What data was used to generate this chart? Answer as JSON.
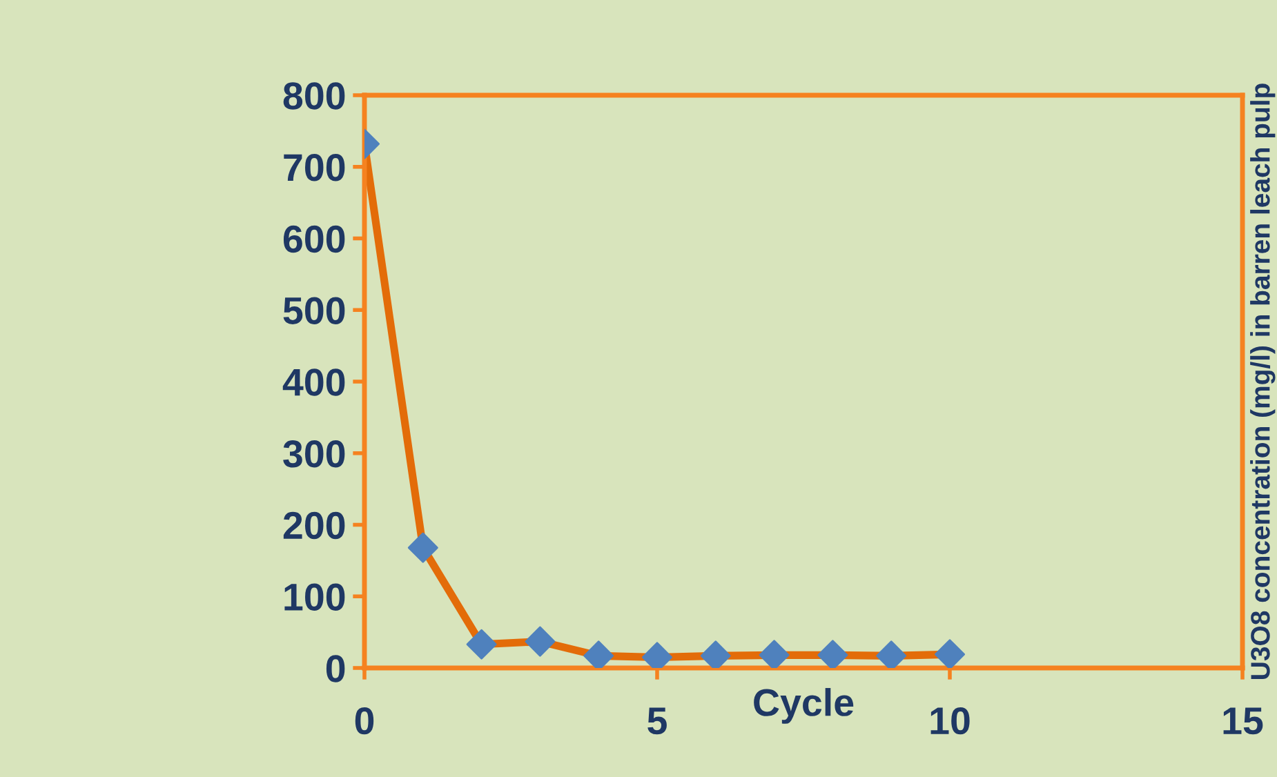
{
  "chart_data": {
    "type": "line",
    "xlabel": "Cycle",
    "ylabel": "U3O8 concentration (mg/l) in barren leach pulp",
    "x": [
      0,
      1,
      2,
      3,
      4,
      5,
      6,
      7,
      8,
      9,
      10
    ],
    "series": [
      {
        "color": "#e36c09",
        "colors": [
          "#4f81bd",
          "#4f81bd",
          "#4f81bd",
          "#4f81bd",
          "#4f81bd",
          "#4f81bd",
          "#4f81bd",
          "#4f81bd",
          "#4f81bd",
          "#4f81bd",
          "#4f81bd"
        ],
        "values": [
          732,
          168,
          33,
          37,
          17,
          15,
          17,
          18,
          18,
          17,
          19
        ]
      }
    ],
    "marker": "diamond",
    "line_style": "solid",
    "xlim": [
      0,
      15
    ],
    "xticks": [
      0,
      5,
      10,
      15
    ],
    "ylim": [
      0,
      800
    ],
    "yticks": [
      0,
      100,
      200,
      300,
      400,
      500,
      600,
      700,
      800
    ],
    "grid": false
  }
}
